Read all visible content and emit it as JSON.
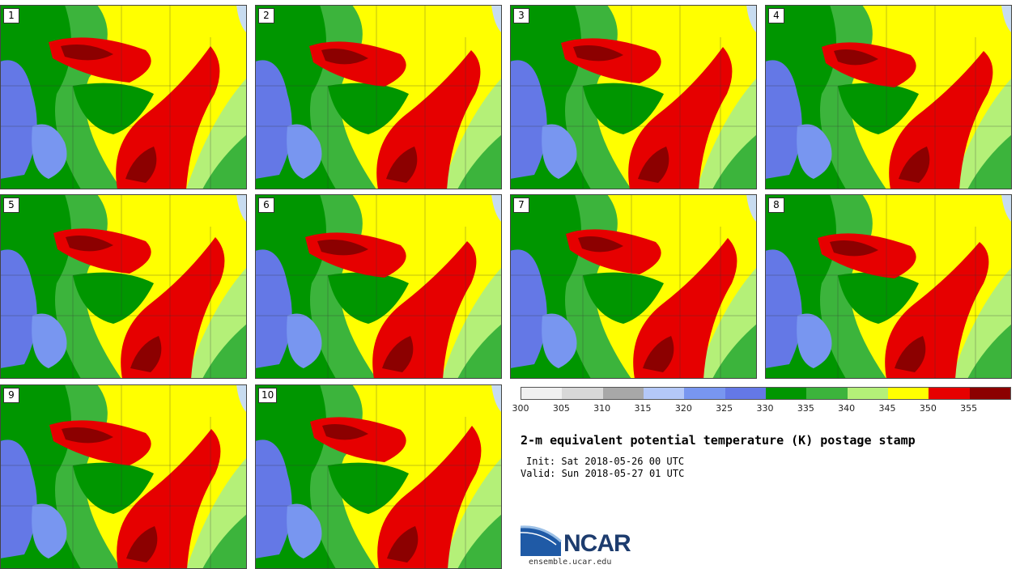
{
  "panels": [
    {
      "label": "1"
    },
    {
      "label": "2"
    },
    {
      "label": "3"
    },
    {
      "label": "4"
    },
    {
      "label": "5"
    },
    {
      "label": "6"
    },
    {
      "label": "7"
    },
    {
      "label": "8"
    },
    {
      "label": "9"
    },
    {
      "label": "10"
    }
  ],
  "colorbar": {
    "colors": [
      "#f0f0f0",
      "#d8d8d8",
      "#a8a8a8",
      "#b4c8f8",
      "#7896f0",
      "#6478e6",
      "#009600",
      "#3cb43c",
      "#b4f078",
      "#ffff00",
      "#e60000",
      "#8c0000"
    ],
    "ticks": [
      "300",
      "305",
      "310",
      "315",
      "320",
      "325",
      "330",
      "335",
      "340",
      "345",
      "350",
      "355"
    ]
  },
  "title": "2-m equivalent potential temperature (K) postage stamp",
  "init": "Init: Sat 2018-05-26 00 UTC",
  "valid": "Valid: Sun 2018-05-27 01 UTC",
  "logo": {
    "name": "NCAR",
    "url": "ensemble.ucar.edu"
  }
}
